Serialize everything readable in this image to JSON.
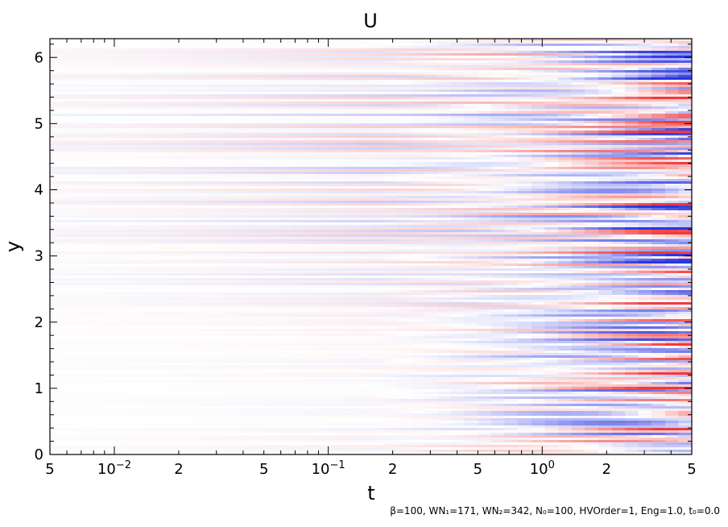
{
  "chart_data": {
    "type": "heatmap",
    "title": "U",
    "xlabel": "t",
    "ylabel": "y",
    "x_scale": "log",
    "xlim": [
      0.005,
      5
    ],
    "ylim": [
      0,
      6.2832
    ],
    "x_ticks": [
      {
        "value": 0.005,
        "label": "5"
      },
      {
        "value": 0.01,
        "label": "10",
        "exponent": "−2"
      },
      {
        "value": 0.02,
        "label": "2"
      },
      {
        "value": 0.05,
        "label": "5"
      },
      {
        "value": 0.1,
        "label": "10",
        "exponent": "−1"
      },
      {
        "value": 0.2,
        "label": "2"
      },
      {
        "value": 0.5,
        "label": "5"
      },
      {
        "value": 1,
        "label": "10",
        "exponent": "0"
      },
      {
        "value": 2,
        "label": "2"
      },
      {
        "value": 5,
        "label": "5"
      }
    ],
    "y_ticks": [
      {
        "value": 0,
        "label": "0"
      },
      {
        "value": 1,
        "label": "1"
      },
      {
        "value": 2,
        "label": "2"
      },
      {
        "value": 3,
        "label": "3"
      },
      {
        "value": 4,
        "label": "4"
      },
      {
        "value": 5,
        "label": "5"
      },
      {
        "value": 6,
        "label": "6"
      }
    ],
    "colormap": {
      "negative": "#2a35e0",
      "zero": "#ffffff",
      "positive": "#f03a3a"
    },
    "grid": false,
    "legend": "none"
  },
  "footnote": "β=100, WN₁=171, WN₂=342, N₀=100, HVOrder=1, Eng=1.0, t₀=0.0"
}
